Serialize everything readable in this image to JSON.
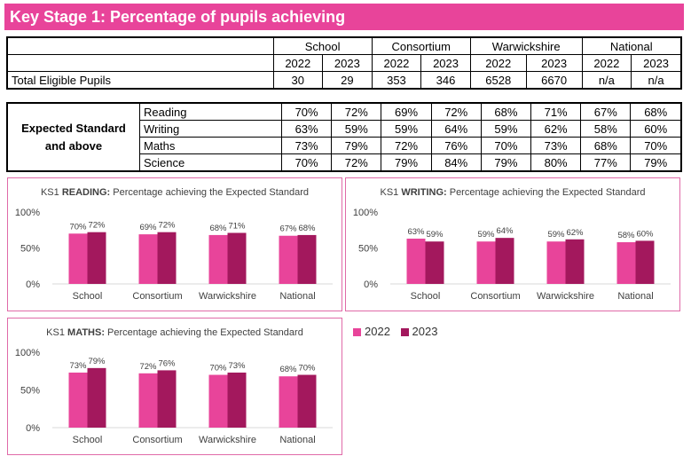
{
  "header": {
    "title": "Key Stage 1: Percentage of pupils achieving"
  },
  "table": {
    "groups": [
      "School",
      "Consortium",
      "Warwickshire",
      "National"
    ],
    "years": [
      "2022",
      "2023"
    ],
    "eligible_label": "Total Eligible Pupils",
    "eligible_values": [
      "30",
      "29",
      "353",
      "346",
      "6528",
      "6670",
      "n/a",
      "n/a"
    ],
    "section_label": "Expected Standard\nand above",
    "rows": [
      {
        "label": "Reading",
        "values": [
          "70%",
          "72%",
          "69%",
          "72%",
          "68%",
          "71%",
          "67%",
          "68%"
        ]
      },
      {
        "label": "Writing",
        "values": [
          "63%",
          "59%",
          "59%",
          "64%",
          "59%",
          "62%",
          "58%",
          "60%"
        ]
      },
      {
        "label": "Maths",
        "values": [
          "73%",
          "79%",
          "72%",
          "76%",
          "70%",
          "73%",
          "68%",
          "70%"
        ]
      },
      {
        "label": "Science",
        "values": [
          "70%",
          "72%",
          "79%",
          "84%",
          "79%",
          "80%",
          "77%",
          "79%"
        ]
      }
    ]
  },
  "legend": [
    {
      "name": "2022",
      "color": "#e8449a"
    },
    {
      "name": "2023",
      "color": "#a3185d"
    }
  ],
  "chart_data": [
    {
      "type": "bar",
      "title_prefix": "KS1 ",
      "title_bold": "READING:",
      "title_rest": " Percentage achieving the Expected Standard",
      "categories": [
        "School",
        "Consortium",
        "Warwickshire",
        "National"
      ],
      "series": [
        {
          "name": "2022",
          "values": [
            70,
            69,
            68,
            67
          ]
        },
        {
          "name": "2023",
          "values": [
            72,
            72,
            71,
            68
          ]
        }
      ],
      "ylim": [
        0,
        100
      ],
      "yticks": [
        "0%",
        "50%",
        "100%"
      ],
      "data_labels": [
        [
          "70%",
          "69%",
          "68%",
          "67%"
        ],
        [
          "72%",
          "72%",
          "71%",
          "68%"
        ]
      ]
    },
    {
      "type": "bar",
      "title_prefix": "KS1 ",
      "title_bold": "WRITING:",
      "title_rest": " Percentage achieving the Expected Standard",
      "categories": [
        "School",
        "Consortium",
        "Warwickshire",
        "National"
      ],
      "series": [
        {
          "name": "2022",
          "values": [
            63,
            59,
            59,
            58
          ]
        },
        {
          "name": "2023",
          "values": [
            59,
            64,
            62,
            60
          ]
        }
      ],
      "ylim": [
        0,
        100
      ],
      "yticks": [
        "0%",
        "50%",
        "100%"
      ],
      "data_labels": [
        [
          "63%",
          "59%",
          "59%",
          "58%"
        ],
        [
          "59%",
          "64%",
          "62%",
          "60%"
        ]
      ]
    },
    {
      "type": "bar",
      "title_prefix": "KS1 ",
      "title_bold": "MATHS:",
      "title_rest": " Percentage achieving the Expected Standard",
      "categories": [
        "School",
        "Consortium",
        "Warwickshire",
        "National"
      ],
      "series": [
        {
          "name": "2022",
          "values": [
            73,
            72,
            70,
            68
          ]
        },
        {
          "name": "2023",
          "values": [
            79,
            76,
            73,
            70
          ]
        }
      ],
      "ylim": [
        0,
        100
      ],
      "yticks": [
        "0%",
        "50%",
        "100%"
      ],
      "data_labels": [
        [
          "73%",
          "72%",
          "70%",
          "68%"
        ],
        [
          "79%",
          "76%",
          "73%",
          "70%"
        ]
      ]
    }
  ]
}
